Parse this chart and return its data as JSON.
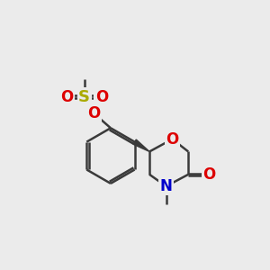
{
  "bg_color": "#ebebeb",
  "bond_color": "#3a3a3a",
  "bond_width": 1.8,
  "atom_colors": {
    "O": "#dd0000",
    "N": "#0000cc",
    "S": "#aaaa00",
    "C": "#3a3a3a"
  }
}
